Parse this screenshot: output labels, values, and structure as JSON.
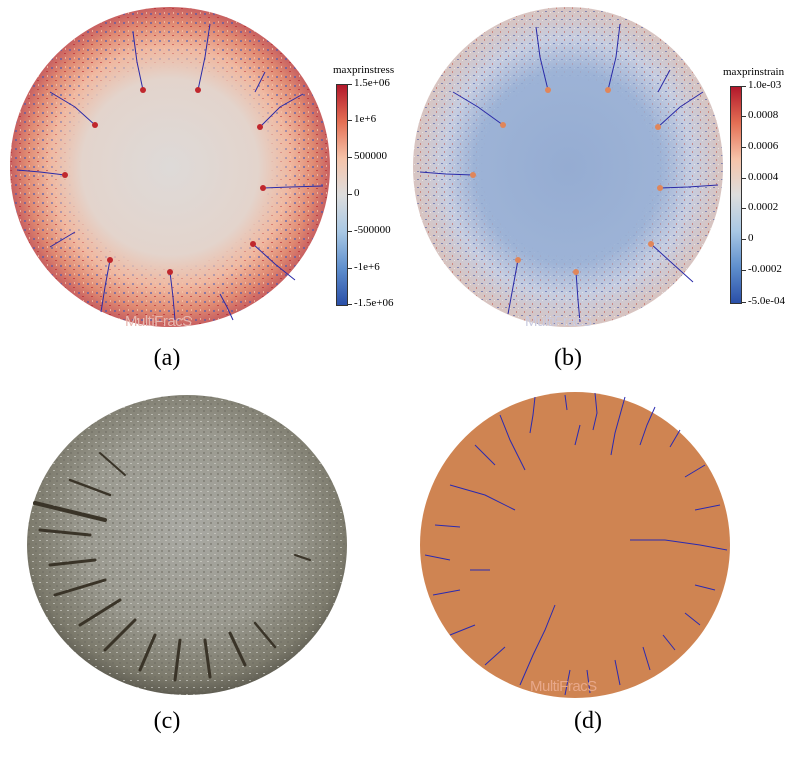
{
  "panels": {
    "a": {
      "caption": "(a)",
      "colorbar": {
        "title": "maxprinstress",
        "ticks": [
          "1.5e+06",
          "1e+6",
          "500000",
          "0",
          "-500000",
          "-1e+6",
          "-1.5e+06"
        ],
        "colors": [
          "#b2182b",
          "#f4a582",
          "#dddddd",
          "#92c5de",
          "#2166ac"
        ]
      },
      "watermark": "MultiFracS"
    },
    "b": {
      "caption": "(b)",
      "colorbar": {
        "title": "maxprinstrain",
        "ticks": [
          "1.0e-03",
          "0.0008",
          "0.0006",
          "0.0004",
          "0.0002",
          "0",
          "-0.0002",
          "-5.0e-04"
        ],
        "colors": [
          "#b2182b",
          "#f4a582",
          "#dddddd",
          "#92c5de",
          "#2166ac"
        ]
      },
      "watermark": "MultiFracS"
    },
    "c": {
      "caption": "(c)"
    },
    "d": {
      "caption": "(d)",
      "watermark": "MultiFracS"
    }
  }
}
